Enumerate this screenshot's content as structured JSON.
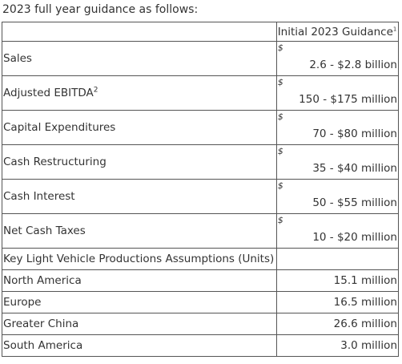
{
  "intro_text": "2023 full year guidance as follows:",
  "table": {
    "header": {
      "label": "",
      "value": "Initial 2023 Guidance",
      "value_footnote": "1"
    },
    "dollar_rows": [
      {
        "label": "Sales",
        "footnote": "",
        "currency": "$",
        "amount": "2.6 - $2.8 billion"
      },
      {
        "label": "Adjusted EBITDA",
        "footnote": "2",
        "currency": "$",
        "amount": "150 - $175 million"
      },
      {
        "label": "Capital Expenditures",
        "footnote": "",
        "currency": "$",
        "amount": "70 - $80 million"
      },
      {
        "label": "Cash Restructuring",
        "footnote": "",
        "currency": "$",
        "amount": "35 - $40 million"
      },
      {
        "label": "Cash Interest",
        "footnote": "",
        "currency": "$",
        "amount": "50 - $55 million"
      },
      {
        "label": "Net Cash Taxes",
        "footnote": "",
        "currency": "$",
        "amount": "10 - $20 million"
      }
    ],
    "assumptions_header": "Key Light Vehicle Productions Assumptions (Units)",
    "unit_rows": [
      {
        "label": "North America",
        "amount": "15.1 million"
      },
      {
        "label": "Europe",
        "amount": "16.5 million"
      },
      {
        "label": "Greater China",
        "amount": "26.6 million"
      },
      {
        "label": "South America",
        "amount": "3.0 million"
      }
    ]
  }
}
